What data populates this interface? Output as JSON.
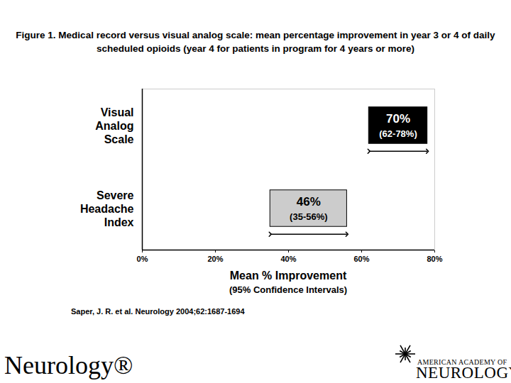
{
  "chart_data": {
    "type": "interval",
    "orientation": "horizontal",
    "title": "Figure 1. Medical record versus visual analog scale: mean percentage improvement in year 3 or 4 of daily scheduled opioids (year 4 for patients in program for 4 years or more)",
    "categories": [
      "Visual Analog Scale",
      "Severe Headache Index"
    ],
    "values": [
      70,
      46
    ],
    "value_labels": [
      "70%",
      "46%"
    ],
    "lower": [
      62,
      35
    ],
    "upper": [
      78,
      56
    ],
    "interval_labels": [
      "(62-78%)",
      "(35-56%)"
    ],
    "colors": [
      "#000000",
      "#cccccc"
    ],
    "x_label": "Mean % Improvement",
    "x_label_note": "(95% Confidence Intervals)",
    "xlim": [
      0,
      80
    ],
    "xticks": [
      {
        "value": 0,
        "label": "0%"
      },
      {
        "value": 20,
        "label": "20%"
      },
      {
        "value": 40,
        "label": "40%"
      },
      {
        "value": 60,
        "label": "60%"
      },
      {
        "value": 80,
        "label": "80%"
      }
    ],
    "data_labels": true,
    "grid": false,
    "source": "Saper, J. R. et al. Neurology 2004;62:1687-1694",
    "logo_left": "Neurology®",
    "logo_right": [
      "AMERICAN ACADEMY OF",
      "NEUROLOGY"
    ]
  }
}
